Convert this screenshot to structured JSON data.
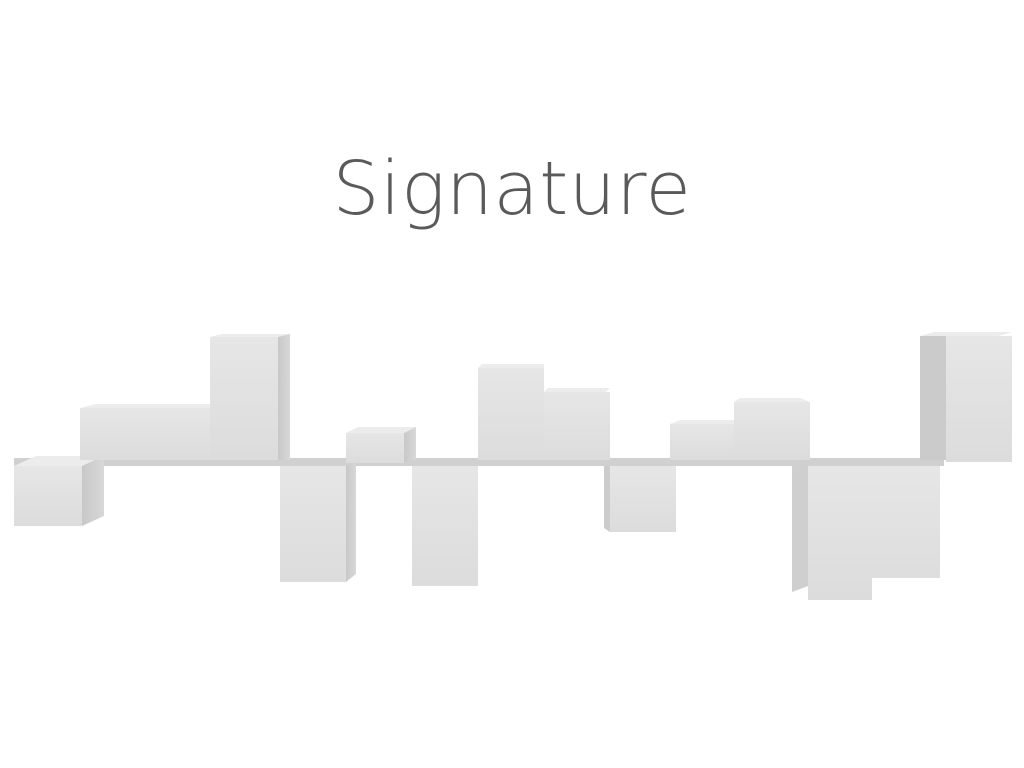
{
  "title": "Signature",
  "colors": {
    "background": "#ffffff",
    "title": "#5a5a5a",
    "face_front": "#e2e2e2",
    "face_top": "#ececec",
    "face_side": "#cfcfcf",
    "face_shadow": "#c4c4c4"
  },
  "artwork": "3d-block-signature-waveform"
}
